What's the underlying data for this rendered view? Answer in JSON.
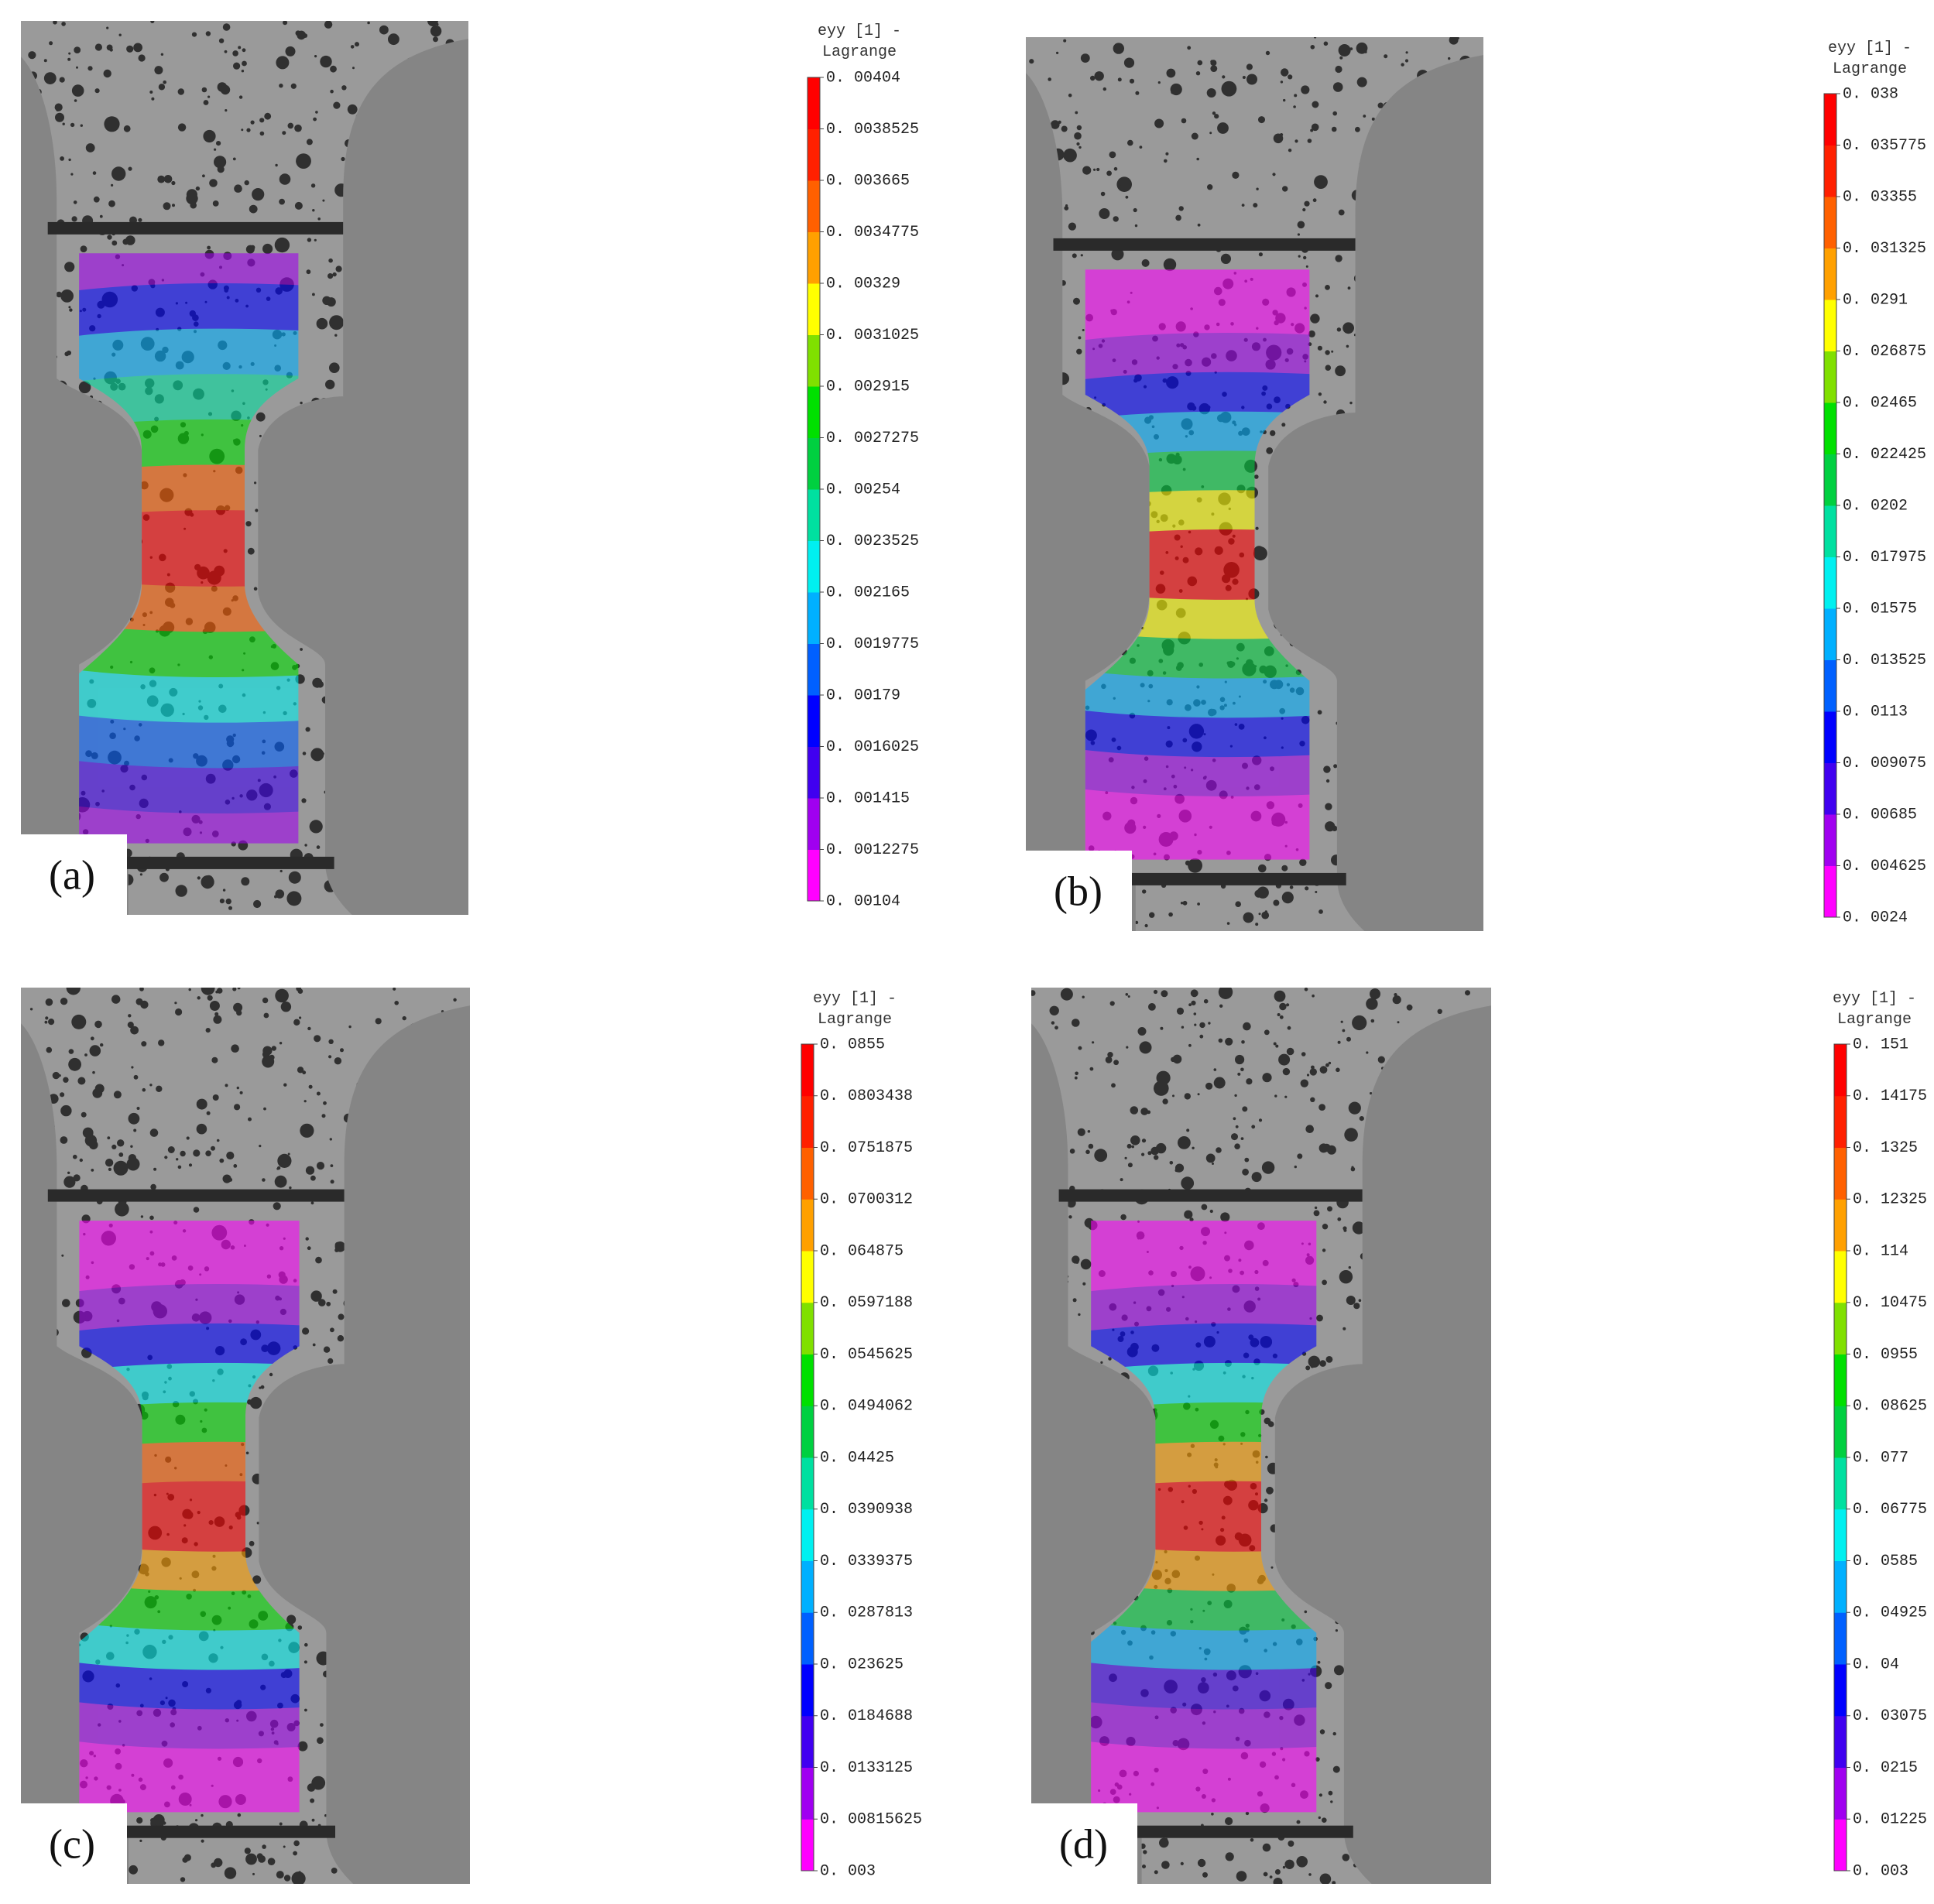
{
  "panels": [
    {
      "label": "(a)",
      "colorbar": {
        "title": [
          "eyy [1] -",
          "Lagrange"
        ],
        "ticks": [
          "0. 00404",
          "0. 0038525",
          "0. 003665",
          "0. 0034775",
          "0. 00329",
          "0. 0031025",
          "0. 002915",
          "0. 0027275",
          "0. 00254",
          "0. 0023525",
          "0. 002165",
          "0. 0019775",
          "0. 00179",
          "0. 0016025",
          "0. 001415",
          "0. 0012275",
          "0. 00104"
        ]
      }
    },
    {
      "label": "(b)",
      "colorbar": {
        "title": [
          "eyy [1] -",
          "Lagrange"
        ],
        "ticks": [
          "0. 038",
          "0. 035775",
          "0. 03355",
          "0. 031325",
          "0. 0291",
          "0. 026875",
          "0. 02465",
          "0. 022425",
          "0. 0202",
          "0. 017975",
          "0. 01575",
          "0. 013525",
          "0. 0113",
          "0. 009075",
          "0. 00685",
          "0. 004625",
          "0. 0024"
        ]
      }
    },
    {
      "label": "(c)",
      "colorbar": {
        "title": [
          "eyy [1] -",
          "Lagrange"
        ],
        "ticks": [
          "0. 0855",
          "0. 0803438",
          "0. 0751875",
          "0. 0700312",
          "0. 064875",
          "0. 0597188",
          "0. 0545625",
          "0. 0494062",
          "0. 04425",
          "0. 0390938",
          "0. 0339375",
          "0. 0287813",
          "0. 023625",
          "0. 0184688",
          "0. 0133125",
          "0. 00815625",
          "0. 003"
        ]
      }
    },
    {
      "label": "(d)",
      "colorbar": {
        "title": [
          "eyy [1] -",
          "Lagrange"
        ],
        "ticks": [
          "0. 151",
          "0. 14175",
          "0. 1325",
          "0. 12325",
          "0. 114",
          "0. 10475",
          "0. 0955",
          "0. 08625",
          "0. 077",
          "0. 06775",
          "0. 0585",
          "0. 04925",
          "0. 04",
          "0. 03075",
          "0. 0215",
          "0. 01225",
          "0. 003"
        ]
      }
    }
  ],
  "colormap": [
    "#ff00ff",
    "#a000f0",
    "#4000f0",
    "#0000ff",
    "#0060ff",
    "#00b0ff",
    "#00f0f0",
    "#00e0a0",
    "#00d040",
    "#00e000",
    "#80e000",
    "#ffff00",
    "#ffa000",
    "#ff6000",
    "#ff2000",
    "#ff0000"
  ]
}
